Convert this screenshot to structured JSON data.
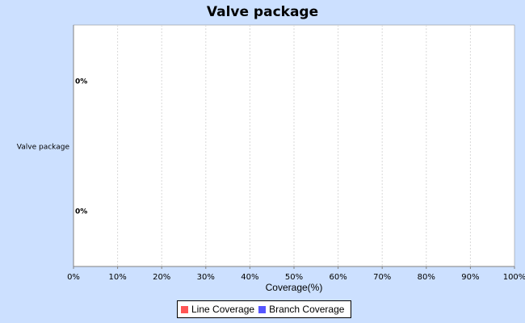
{
  "chart_data": {
    "type": "bar",
    "orientation": "horizontal",
    "title": "Valve package",
    "categories": [
      "Valve package"
    ],
    "series": [
      {
        "name": "Line Coverage",
        "values": [
          0
        ],
        "color": "#ff5555",
        "label": "0%"
      },
      {
        "name": "Branch Coverage",
        "values": [
          0
        ],
        "color": "#5555ff",
        "label": "0%"
      }
    ],
    "xlabel": "Coverage(%)",
    "ylabel": "",
    "xlim": [
      0,
      100
    ],
    "ticks": [
      "0%",
      "10%",
      "20%",
      "30%",
      "40%",
      "50%",
      "60%",
      "70%",
      "80%",
      "90%",
      "100%"
    ],
    "grid": true,
    "legend": "bottom"
  }
}
